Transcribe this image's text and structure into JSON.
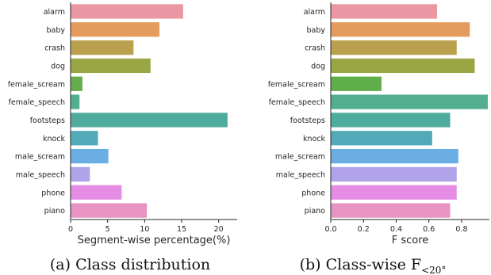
{
  "chart_data": [
    {
      "type": "bar",
      "orientation": "horizontal",
      "categories": [
        "alarm",
        "baby",
        "crash",
        "dog",
        "female_scream",
        "female_speech",
        "footsteps",
        "knock",
        "male_scream",
        "male_speech",
        "phone",
        "piano"
      ],
      "values": [
        15.2,
        12.0,
        8.5,
        10.8,
        1.6,
        1.2,
        21.2,
        3.7,
        5.1,
        2.6,
        6.9,
        10.3
      ],
      "colors": [
        "#ea96a3",
        "#e59a5e",
        "#bba14d",
        "#9aa643",
        "#65ad4e",
        "#52ae8e",
        "#4fab9e",
        "#52aab8",
        "#6aaee4",
        "#b1a3ea",
        "#e58de4",
        "#e893c3"
      ],
      "xlabel": "Segment-wise percentage(%)",
      "xlim": [
        0,
        22.5
      ],
      "xticks": [
        0,
        5,
        10,
        15,
        20
      ],
      "xtick_labels": [
        "0",
        "5",
        "10",
        "15",
        "20"
      ],
      "grid": false,
      "caption": "(a) Class distribution"
    },
    {
      "type": "bar",
      "orientation": "horizontal",
      "categories": [
        "alarm",
        "baby",
        "crash",
        "dog",
        "female_scream",
        "female_speech",
        "footsteps",
        "knock",
        "male_scream",
        "male_speech",
        "phone",
        "piano"
      ],
      "values": [
        0.65,
        0.85,
        0.77,
        0.88,
        0.31,
        0.96,
        0.73,
        0.62,
        0.78,
        0.77,
        0.77,
        0.73
      ],
      "colors": [
        "#ea96a3",
        "#e59a5e",
        "#bba14d",
        "#9aa643",
        "#5fae4a",
        "#52ae8e",
        "#4fab9e",
        "#52aab8",
        "#6aaee4",
        "#b1a3ea",
        "#e58de4",
        "#e893c3"
      ],
      "xlabel": "F score",
      "xlim": [
        0,
        0.97
      ],
      "xticks": [
        0.0,
        0.2,
        0.4,
        0.6,
        0.8
      ],
      "xtick_labels": [
        "0.0",
        "0.2",
        "0.4",
        "0.6",
        "0.8"
      ],
      "grid": false,
      "caption": "(b) Class-wise F",
      "caption_subscript": "<20°"
    }
  ]
}
